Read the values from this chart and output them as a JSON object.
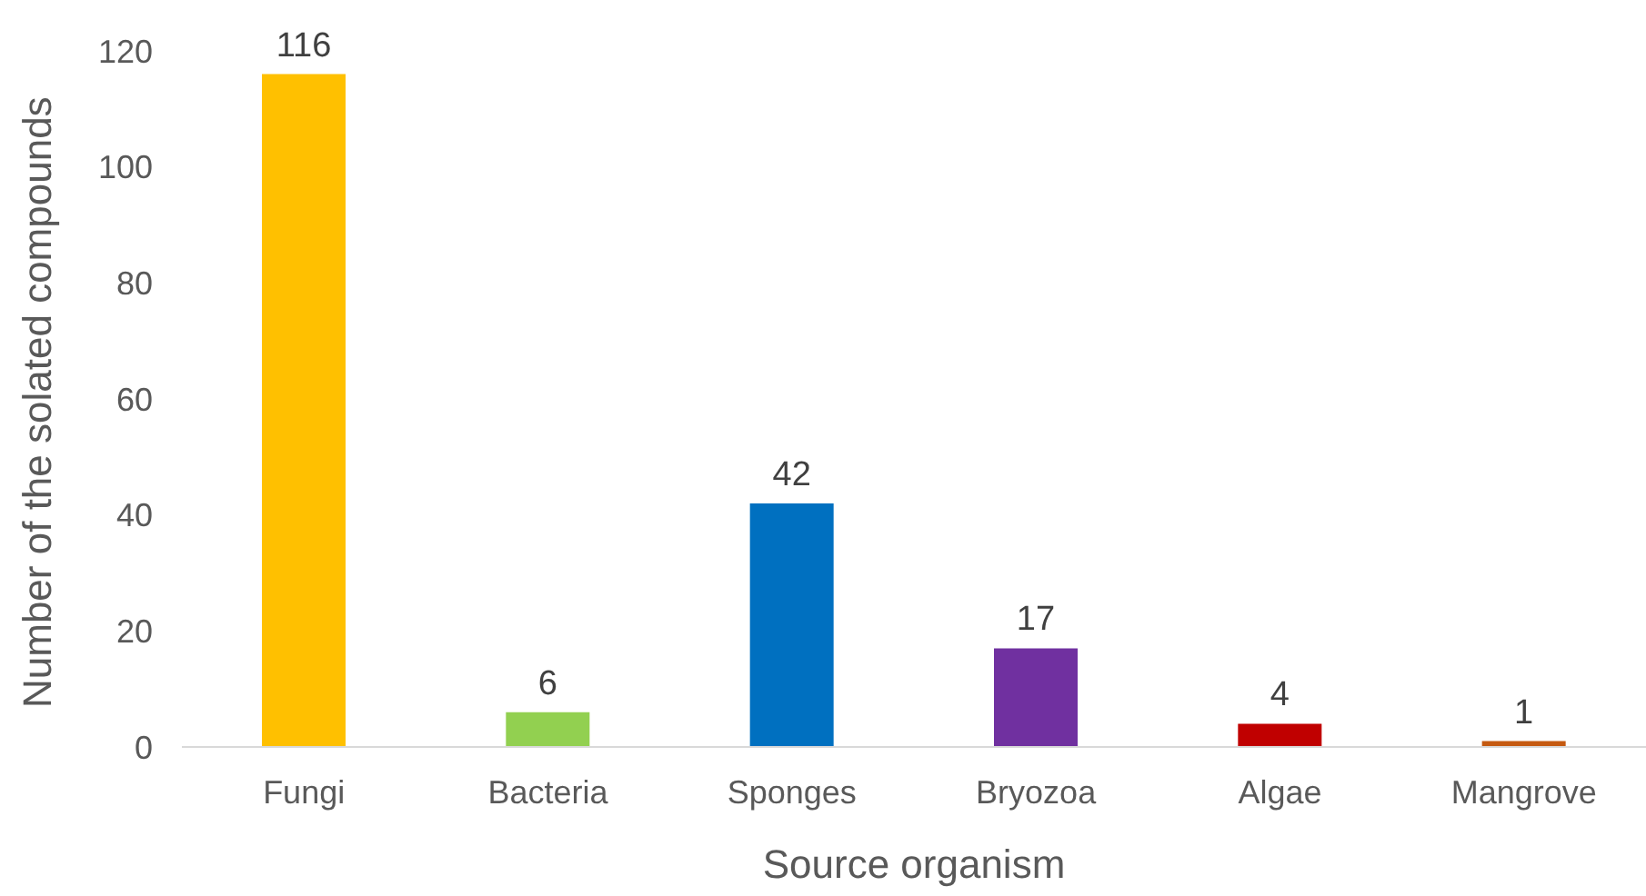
{
  "chart_data": {
    "type": "bar",
    "xlabel": "Source organism",
    "ylabel": "Number of the solated compounds",
    "categories": [
      "Fungi",
      "Bacteria",
      "Sponges",
      "Bryozoa",
      "Algae",
      "Mangrove"
    ],
    "values": [
      116,
      6,
      42,
      17,
      4,
      1
    ],
    "colors": [
      "#ffc000",
      "#92d050",
      "#0070c0",
      "#7030a0",
      "#c00000",
      "#c55a11"
    ],
    "ylim": [
      0,
      120
    ],
    "yticks": [
      0,
      20,
      40,
      60,
      80,
      100,
      120
    ],
    "grid": false,
    "legend": false,
    "data_labels": true
  }
}
